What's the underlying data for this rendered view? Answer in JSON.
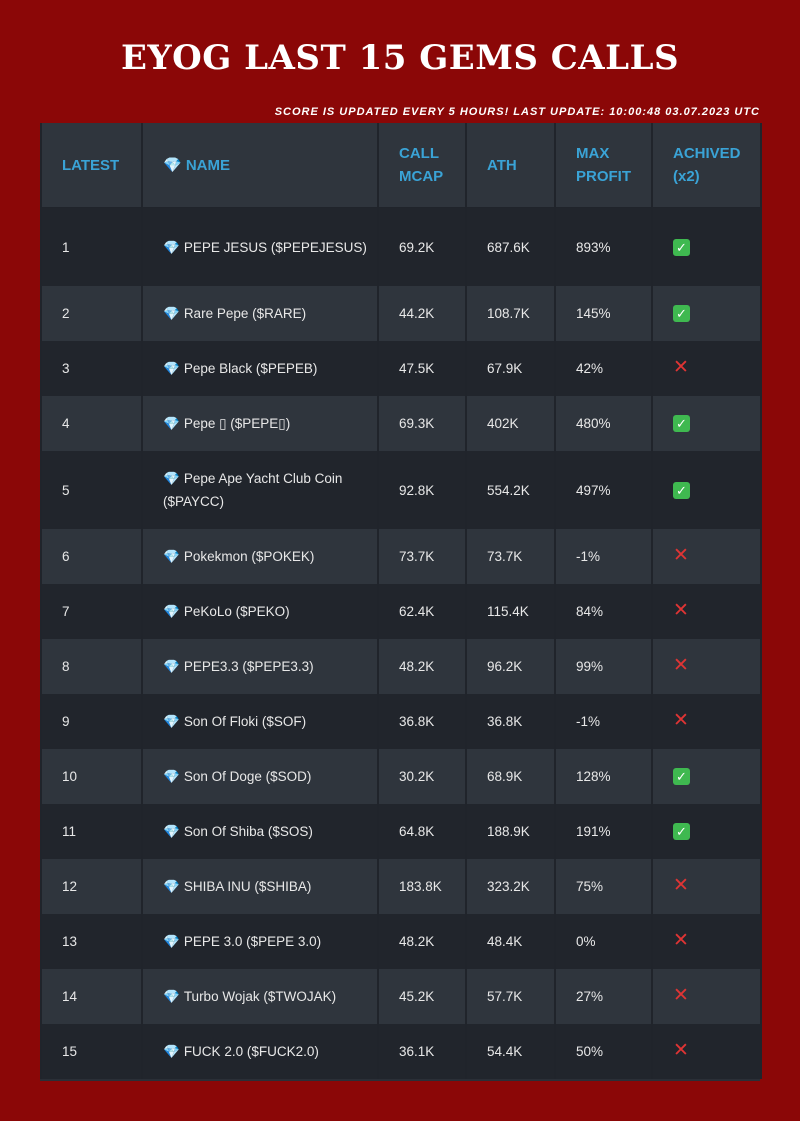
{
  "header": {
    "title": "EYOG LAST 15 GEMS CALLS",
    "update_text": "SCORE IS UPDATED EVERY 5 HOURS! LAST UPDATE: 10:00:48 03.07.2023 UTC"
  },
  "table": {
    "columns": [
      "LATEST",
      "💎 NAME",
      "CALL MCAP",
      "ATH",
      "MAX PROFIT",
      "ACHIVED (x2)"
    ],
    "rows": [
      {
        "latest": "1",
        "name": "PEPE JESUS ($PEPEJESUS)",
        "call_mcap": "69.2K",
        "ath": "687.6K",
        "max_profit": "893%",
        "achieved": true
      },
      {
        "latest": "2",
        "name": "Rare Pepe ($RARE)",
        "call_mcap": "44.2K",
        "ath": "108.7K",
        "max_profit": "145%",
        "achieved": true
      },
      {
        "latest": "3",
        "name": "Pepe Black ($PEPEB)",
        "call_mcap": "47.5K",
        "ath": "67.9K",
        "max_profit": "42%",
        "achieved": false
      },
      {
        "latest": "4",
        "name": "Pepe ▯ ($PEPE▯)",
        "call_mcap": "69.3K",
        "ath": "402K",
        "max_profit": "480%",
        "achieved": true
      },
      {
        "latest": "5",
        "name": "Pepe Ape Yacht Club Coin ($PAYCC)",
        "call_mcap": "92.8K",
        "ath": "554.2K",
        "max_profit": "497%",
        "achieved": true
      },
      {
        "latest": "6",
        "name": "Pokekmon ($POKEK)",
        "call_mcap": "73.7K",
        "ath": "73.7K",
        "max_profit": "-1%",
        "achieved": false
      },
      {
        "latest": "7",
        "name": "PeKoLo ($PEKO)",
        "call_mcap": "62.4K",
        "ath": "115.4K",
        "max_profit": "84%",
        "achieved": false
      },
      {
        "latest": "8",
        "name": "PEPE3.3 ($PEPE3.3)",
        "call_mcap": "48.2K",
        "ath": "96.2K",
        "max_profit": "99%",
        "achieved": false
      },
      {
        "latest": "9",
        "name": "Son Of Floki ($SOF)",
        "call_mcap": "36.8K",
        "ath": "36.8K",
        "max_profit": "-1%",
        "achieved": false
      },
      {
        "latest": "10",
        "name": "Son Of Doge ($SOD)",
        "call_mcap": "30.2K",
        "ath": "68.9K",
        "max_profit": "128%",
        "achieved": true
      },
      {
        "latest": "11",
        "name": "Son Of Shiba ($SOS)",
        "call_mcap": "64.8K",
        "ath": "188.9K",
        "max_profit": "191%",
        "achieved": true
      },
      {
        "latest": "12",
        "name": "SHIBA INU ($SHIBA)",
        "call_mcap": "183.8K",
        "ath": "323.2K",
        "max_profit": "75%",
        "achieved": false
      },
      {
        "latest": "13",
        "name": "PEPE 3.0 ($PEPE 3.0)",
        "call_mcap": "48.2K",
        "ath": "48.4K",
        "max_profit": "0%",
        "achieved": false
      },
      {
        "latest": "14",
        "name": "Turbo Wojak ($TWOJAK)",
        "call_mcap": "45.2K",
        "ath": "57.7K",
        "max_profit": "27%",
        "achieved": false
      },
      {
        "latest": "15",
        "name": "FUCK 2.0 ($FUCK2.0)",
        "call_mcap": "36.1K",
        "ath": "54.4K",
        "max_profit": "50%",
        "achieved": false
      }
    ]
  },
  "icons": {
    "gem": "gem-icon",
    "achieved": "check-icon",
    "not_achieved": "cross-icon"
  },
  "colors": {
    "background": "#8b0707",
    "header_text": "#3aa3d6",
    "check": "#3fb950",
    "cross": "#e03434"
  }
}
